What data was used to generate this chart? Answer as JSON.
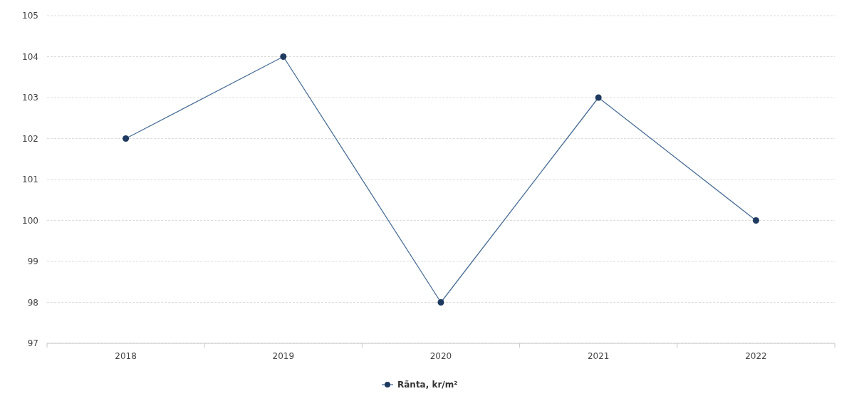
{
  "chart_data": {
    "type": "line",
    "categories": [
      "2018",
      "2019",
      "2020",
      "2021",
      "2022"
    ],
    "series": [
      {
        "name": "Ränta, kr/m²",
        "color": "#4a6e96",
        "values": [
          102,
          104,
          98,
          103,
          100
        ]
      }
    ],
    "ylim": [
      97,
      105
    ],
    "yticks": [
      97,
      98,
      99,
      100,
      101,
      102,
      103,
      104,
      105
    ],
    "grid": "y",
    "legend": "bottom",
    "marker": "circle"
  }
}
